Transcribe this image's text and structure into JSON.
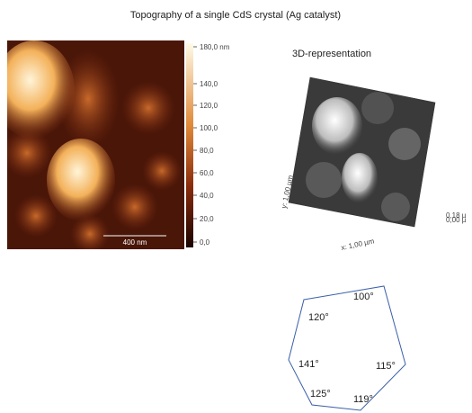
{
  "header": {
    "title": "Topography of a single CdS crystal (Ag catalyst)"
  },
  "afm_image": {
    "scale_bar": "400 nm",
    "colorbar": {
      "labels": [
        "180,0 nm",
        "140,0",
        "120,0",
        "100,0",
        "80,0",
        "60,0",
        "40,0",
        "20,0",
        "0,0"
      ]
    }
  },
  "view_3d": {
    "title": "3D-representation",
    "y_axis": "y: 1,00 µm",
    "x_axis": "x: 1,00 µm",
    "z_top": "0,18 µ",
    "z_bottom": "0,00 µ"
  },
  "polygon": {
    "angles": [
      "100°",
      "120°",
      "141°",
      "115°",
      "125°",
      "119°"
    ]
  }
}
